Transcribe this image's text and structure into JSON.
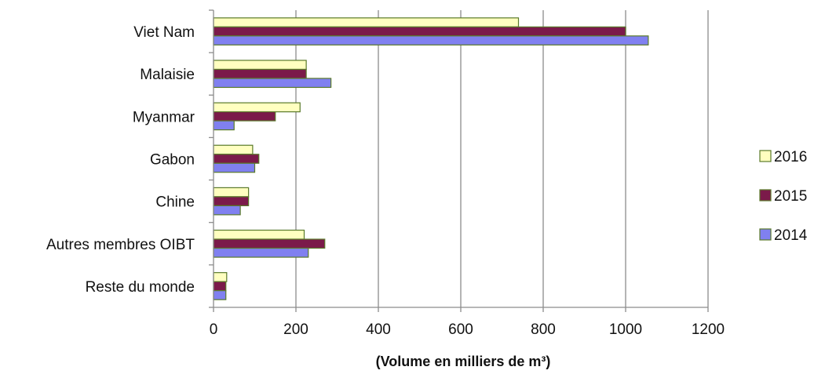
{
  "chart_data": {
    "type": "bar",
    "orientation": "horizontal",
    "categories": [
      "Viet Nam",
      "Malaisie",
      "Myanmar",
      "Gabon",
      "Chine",
      "Autres membres OIBT",
      "Reste du monde"
    ],
    "series": [
      {
        "name": "2016",
        "color": "#ffffc0",
        "values": [
          740,
          225,
          210,
          95,
          85,
          220,
          32
        ]
      },
      {
        "name": "2015",
        "color": "#7b1a4a",
        "values": [
          1000,
          225,
          150,
          110,
          85,
          270,
          30
        ]
      },
      {
        "name": "2014",
        "color": "#8080f0",
        "values": [
          1055,
          285,
          50,
          100,
          65,
          230,
          30
        ]
      }
    ],
    "xlim": [
      0,
      1200
    ],
    "x_ticks": [
      "0",
      "200",
      "400",
      "600",
      "800",
      "1000",
      "1200"
    ],
    "xlabel": "(Volume en milliers de m³)",
    "bar_border_color": "#5a7a2a",
    "grid": true,
    "legend_position": "right"
  }
}
